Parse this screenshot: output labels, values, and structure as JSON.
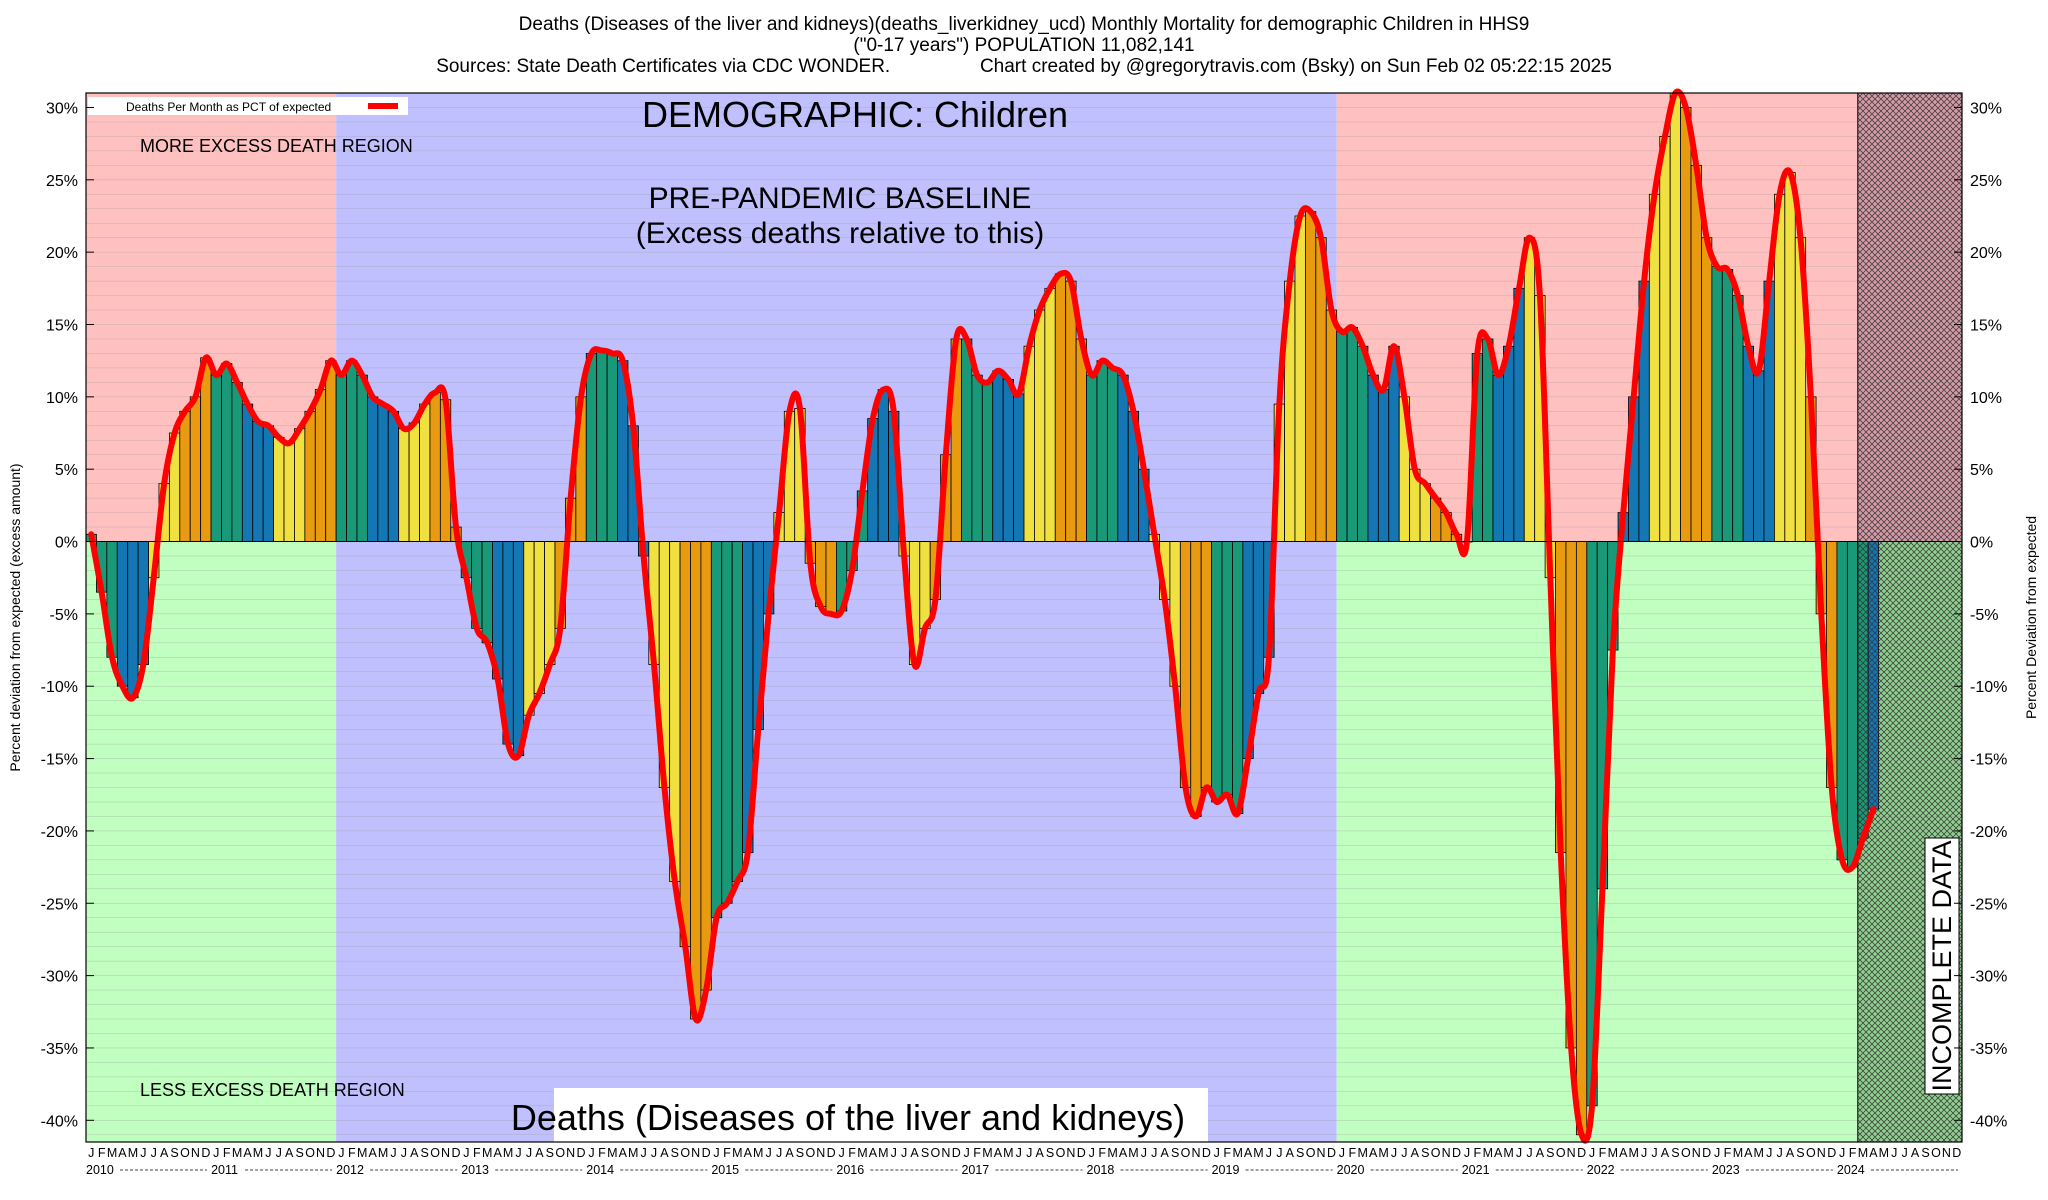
{
  "header": {
    "line1": "Deaths (Diseases of the liver and kidneys)(deaths_liverkidney_ucd) Monthly Mortality for demographic Children in HHS9",
    "line2": "(\"0-17 years\") POPULATION 11,082,141",
    "line3": "Sources: State Death Certificates via CDC WONDER.                 Chart created by @gregorytravis.com (Bsky) on Sun Feb 02 05:22:15 2025"
  },
  "chart_data": {
    "type": "bar",
    "ylabel_left": "Percent deviation from expected (excess amount)",
    "ylabel_right": "Percent Deviation from expected",
    "ylim": [
      -41.5,
      31
    ],
    "yticks": [
      30,
      25,
      20,
      15,
      10,
      5,
      0,
      -5,
      -10,
      -15,
      -20,
      -25,
      -30,
      -35,
      -40
    ],
    "ytick_labels": [
      "30%",
      "25%",
      "20%",
      "15%",
      "10%",
      "5%",
      "0%",
      "-5%",
      "-10%",
      "-15%",
      "-20%",
      "-25%",
      "-30%",
      "-35%",
      "-40%"
    ],
    "grid": "horizontal minor lines",
    "legend": {
      "label": "Deaths Per Month as PCT of expected",
      "position": "top-left",
      "color": "#ff0000"
    },
    "annotations": {
      "demographic": "DEMOGRAPHIC: Children",
      "baseline_line1": "PRE-PANDEMIC BASELINE",
      "baseline_line2": "(Excess deaths relative to this)",
      "more_excess": "MORE EXCESS DEATH REGION",
      "less_excess": "LESS EXCESS DEATH REGION",
      "bottom_title": "Deaths (Diseases of the liver and kidneys)",
      "incomplete": "INCOMPLETE DATA"
    },
    "regions": {
      "baseline_start_month": 24,
      "baseline_end_month": 120,
      "incomplete_start_month": 170,
      "colors": {
        "excess_pink": "#ffc0c0",
        "less_green": "#c0ffc0",
        "baseline_blue": "#c0c0ff",
        "incomplete_pink": "#d59aa6",
        "incomplete_green": "#8fd08f"
      }
    },
    "bar_colors": [
      "#1a9978",
      "#1a9978",
      "#1a9978",
      "#1477b4",
      "#1477b4",
      "#1477b4",
      "#f0e040",
      "#f0e040",
      "#f0e040",
      "#e89a10",
      "#e89a10",
      "#e89a10"
    ],
    "month_letters": [
      "J",
      "F",
      "M",
      "A",
      "M",
      "J",
      "J",
      "A",
      "S",
      "O",
      "N",
      "D"
    ],
    "years": [
      "2010",
      "2011",
      "2012",
      "2013",
      "2014",
      "2015",
      "2016",
      "2017",
      "2018",
      "2019",
      "2020",
      "2021",
      "2022",
      "2023",
      "2024"
    ],
    "x_start": "2010-01",
    "values": [
      0.5,
      -3.5,
      -8.0,
      -10.0,
      -10.8,
      -8.5,
      -2.5,
      4.0,
      7.5,
      9.0,
      10.0,
      12.7,
      11.5,
      12.3,
      11.0,
      9.5,
      8.3,
      8.0,
      7.2,
      6.8,
      7.8,
      9.0,
      10.5,
      12.5,
      11.5,
      12.5,
      11.5,
      10.0,
      9.5,
      9.0,
      7.8,
      8.2,
      9.5,
      10.3,
      9.8,
      1.0,
      -2.5,
      -6.0,
      -7.0,
      -9.5,
      -14.0,
      -14.8,
      -12.0,
      -10.5,
      -8.5,
      -6.0,
      3.0,
      10.0,
      13.0,
      13.2,
      13.0,
      12.5,
      8.0,
      -1.0,
      -8.5,
      -17.0,
      -23.5,
      -28.0,
      -33.0,
      -31.0,
      -26.0,
      -25.0,
      -23.5,
      -21.5,
      -13.0,
      -5.0,
      2.0,
      9.0,
      9.2,
      -1.5,
      -4.5,
      -5.0,
      -4.8,
      -2.0,
      3.5,
      8.5,
      10.5,
      9.0,
      -1.0,
      -8.5,
      -6.0,
      -4.0,
      6.0,
      14.0,
      14.0,
      11.5,
      11.0,
      11.8,
      11.2,
      10.2,
      13.5,
      16.0,
      17.5,
      18.5,
      18.0,
      14.0,
      11.5,
      12.5,
      12.0,
      11.5,
      9.0,
      5.0,
      0.5,
      -4.0,
      -10.0,
      -17.0,
      -19.0,
      -17.0,
      -18.0,
      -17.5,
      -18.8,
      -15.0,
      -10.5,
      -8.0,
      9.5,
      18.0,
      22.5,
      22.8,
      21.0,
      16.0,
      14.5,
      14.8,
      13.5,
      11.5,
      10.5,
      13.5,
      10.0,
      5.0,
      4.0,
      3.0,
      2.0,
      0.5,
      0.0,
      13.0,
      14.0,
      11.5,
      13.5,
      17.5,
      21.0,
      17.0,
      -2.5,
      -21.5,
      -35.0,
      -41.0,
      -39.0,
      -24.0,
      -7.5,
      2.0,
      10.0,
      18.0,
      24.0,
      28.0,
      31.0,
      30.0,
      26.0,
      21.0,
      19.0,
      18.8,
      17.0,
      13.5,
      11.8,
      18.0,
      24.0,
      25.5,
      21.0,
      10.0,
      -5.0,
      -17.0,
      -22.0,
      -22.5,
      -20.5,
      -18.5
    ]
  }
}
